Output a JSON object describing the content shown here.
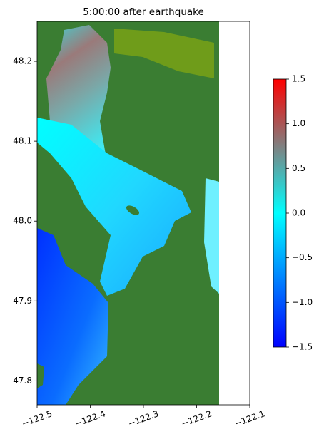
{
  "chart_data": {
    "type": "map",
    "title": "5:00:00 after earthquake",
    "xlim": [
      -122.5,
      -122.1
    ],
    "xticks": [
      {
        "value": -122.5,
        "label": "−122.5"
      },
      {
        "value": -122.4,
        "label": "−122.4"
      },
      {
        "value": -122.3,
        "label": "−122.3"
      },
      {
        "value": -122.2,
        "label": "−122.2"
      },
      {
        "value": -122.1,
        "label": "−122.1"
      }
    ],
    "ylim": [
      47.77,
      48.25
    ],
    "yticks": [
      47.8,
      47.9,
      {
        "value": 48.0,
        "label": "48.0"
      },
      48.1,
      48.2
    ],
    "colorbar": {
      "lim": [
        -1.5,
        1.5
      ],
      "ticks": [
        {
          "value": -1.5,
          "label": "−1.5"
        },
        {
          "value": -1.0,
          "label": "−1.0"
        },
        {
          "value": -0.5,
          "label": "−0.5"
        },
        {
          "value": 0.0,
          "label": "0.0"
        },
        {
          "value": 0.5,
          "label": "0.5"
        },
        {
          "value": 1.0,
          "label": "1.0"
        },
        {
          "value": 1.5,
          "label": "1.5"
        }
      ],
      "colors": [
        "#0000ff",
        "#0080ff",
        "#00ffff",
        "#808080",
        "#ff0000"
      ]
    }
  }
}
